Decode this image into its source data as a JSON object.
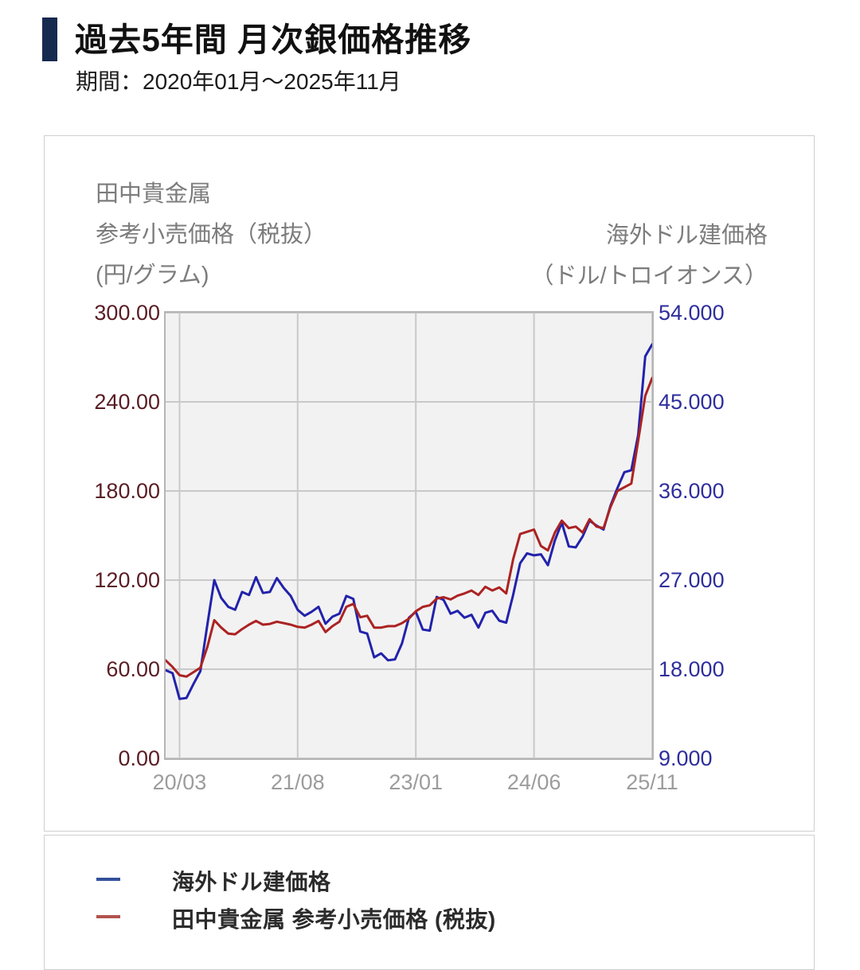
{
  "header": {
    "accent_color": "#16294f",
    "title": "過去5年間 月次銀価格推移",
    "subtitle": "期間：2020年01月～2025年11月"
  },
  "chart": {
    "left_axis_title_lines": [
      "田中貴金属",
      "参考小売価格（税抜）",
      "(円/グラム)"
    ],
    "right_axis_title_lines": [
      "海外ドル建価格",
      "（ドル/トロイオンス）"
    ]
  },
  "chart_data": {
    "type": "line",
    "title": "過去5年間 月次銀価格推移",
    "x": [
      "20/01",
      "20/02",
      "20/03",
      "20/04",
      "20/05",
      "20/06",
      "20/07",
      "20/08",
      "20/09",
      "20/10",
      "20/11",
      "20/12",
      "21/01",
      "21/02",
      "21/03",
      "21/04",
      "21/05",
      "21/06",
      "21/07",
      "21/08",
      "21/09",
      "21/10",
      "21/11",
      "21/12",
      "22/01",
      "22/02",
      "22/03",
      "22/04",
      "22/05",
      "22/06",
      "22/07",
      "22/08",
      "22/09",
      "22/10",
      "22/11",
      "22/12",
      "23/01",
      "23/02",
      "23/03",
      "23/04",
      "23/05",
      "23/06",
      "23/07",
      "23/08",
      "23/09",
      "23/10",
      "23/11",
      "23/12",
      "24/01",
      "24/02",
      "24/03",
      "24/04",
      "24/05",
      "24/06",
      "24/07",
      "24/08",
      "24/09",
      "24/10",
      "24/11",
      "24/12",
      "25/01",
      "25/02",
      "25/03",
      "25/04",
      "25/05",
      "25/06",
      "25/07",
      "25/08",
      "25/09",
      "25/10",
      "25/11"
    ],
    "x_tick_indices": [
      2,
      19,
      36,
      53,
      70
    ],
    "x_tick_labels": [
      "20/03",
      "21/08",
      "23/01",
      "24/06",
      "25/11"
    ],
    "left_axis": {
      "min": 0,
      "max": 300,
      "tick_labels": [
        "300.00",
        "240.00",
        "180.00",
        "120.00",
        "60.00",
        "0.00"
      ],
      "tick_values": [
        300,
        240,
        180,
        120,
        60,
        0
      ],
      "color": "#5a1d24"
    },
    "right_axis": {
      "min": 9,
      "max": 54,
      "tick_labels": [
        "54.000",
        "45.000",
        "36.000",
        "27.000",
        "18.000",
        "9.000"
      ],
      "tick_values": [
        54,
        45,
        36,
        27,
        18,
        9
      ],
      "color": "#2e2e9c"
    },
    "grid": true,
    "plot_background": "#f2f2f2",
    "grid_color": "#c9c9c9",
    "legend_position": "bottom",
    "series": [
      {
        "name": "海外ドル建価格",
        "axis": "right",
        "unit": "ドル/トロイオンス",
        "color": "#2222ac",
        "values": [
          17.9,
          17.6,
          15.0,
          15.1,
          16.5,
          17.8,
          22.5,
          27.0,
          25.2,
          24.3,
          24.0,
          25.8,
          25.5,
          27.3,
          25.7,
          25.8,
          27.2,
          26.2,
          25.4,
          24.0,
          23.4,
          23.8,
          24.3,
          22.6,
          23.3,
          23.6,
          25.4,
          25.1,
          21.8,
          21.6,
          19.2,
          19.6,
          18.9,
          19.0,
          20.6,
          23.2,
          23.8,
          22.0,
          21.9,
          25.3,
          25.0,
          23.6,
          23.9,
          23.2,
          23.5,
          22.2,
          23.7,
          23.9,
          22.9,
          22.7,
          25.5,
          28.7,
          29.7,
          29.5,
          29.6,
          28.5,
          31.0,
          32.8,
          30.4,
          30.3,
          31.4,
          33.0,
          32.5,
          32.1,
          34.5,
          36.3,
          37.9,
          38.1,
          41.7,
          49.6,
          50.8
        ]
      },
      {
        "name": "田中貴金属 参考小売価格 (税抜)",
        "axis": "left",
        "unit": "円/グラム",
        "color": "#ac2222",
        "values": [
          66,
          61.5,
          56,
          55,
          58,
          61,
          75,
          93,
          88,
          84,
          83.5,
          87,
          90,
          92.5,
          90,
          90.5,
          92,
          91,
          90,
          88.5,
          88,
          90,
          92.5,
          85,
          89,
          92,
          102,
          104,
          95,
          96,
          88,
          88,
          89,
          89,
          91,
          94,
          99,
          102,
          103,
          107.5,
          108.5,
          107,
          109.5,
          111,
          113,
          110,
          115.5,
          113,
          115,
          111,
          134,
          151,
          152.5,
          154,
          143,
          140,
          152,
          160,
          155,
          156,
          152,
          161,
          156,
          155,
          169,
          180,
          182.5,
          185,
          214,
          244,
          256
        ]
      }
    ]
  },
  "legend": {
    "items": [
      {
        "label": "海外ドル建価格",
        "swatch_color": "#33509c"
      },
      {
        "label": "田中貴金属 参考小売価格 (税抜)",
        "swatch_color": "#b3524e"
      }
    ]
  }
}
